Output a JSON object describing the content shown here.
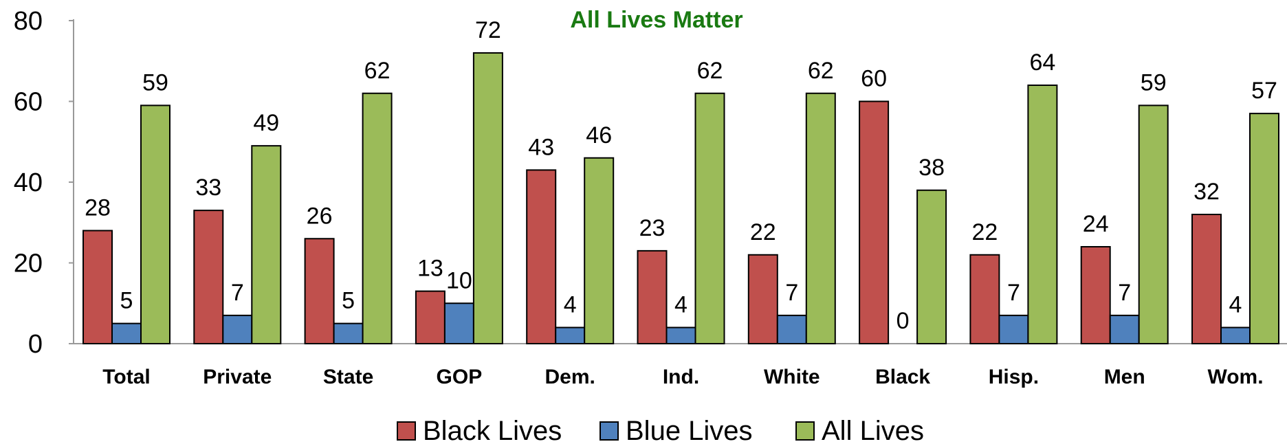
{
  "chart_data": {
    "type": "bar",
    "title": "All Lives Matter",
    "title_color": "#1a7a12",
    "categories": [
      "Total",
      "Private",
      "State",
      "GOP",
      "Dem.",
      "Ind.",
      "White",
      "Black",
      "Hisp.",
      "Men",
      "Wom."
    ],
    "series": [
      {
        "name": "Black Lives",
        "color": "#c0504d",
        "values": [
          28,
          33,
          26,
          13,
          43,
          23,
          22,
          60,
          22,
          24,
          32
        ]
      },
      {
        "name": "Blue Lives",
        "color": "#4f81bd",
        "values": [
          5,
          7,
          5,
          10,
          4,
          4,
          7,
          0,
          7,
          7,
          4
        ]
      },
      {
        "name": "All Lives",
        "color": "#9bbb59",
        "values": [
          59,
          49,
          62,
          72,
          46,
          62,
          62,
          38,
          64,
          59,
          57
        ]
      }
    ],
    "ylim": [
      0,
      80
    ],
    "yticks": [
      0,
      20,
      40,
      60,
      80
    ],
    "xlabel": "",
    "ylabel": "",
    "grid": false,
    "legend_position": "bottom"
  }
}
